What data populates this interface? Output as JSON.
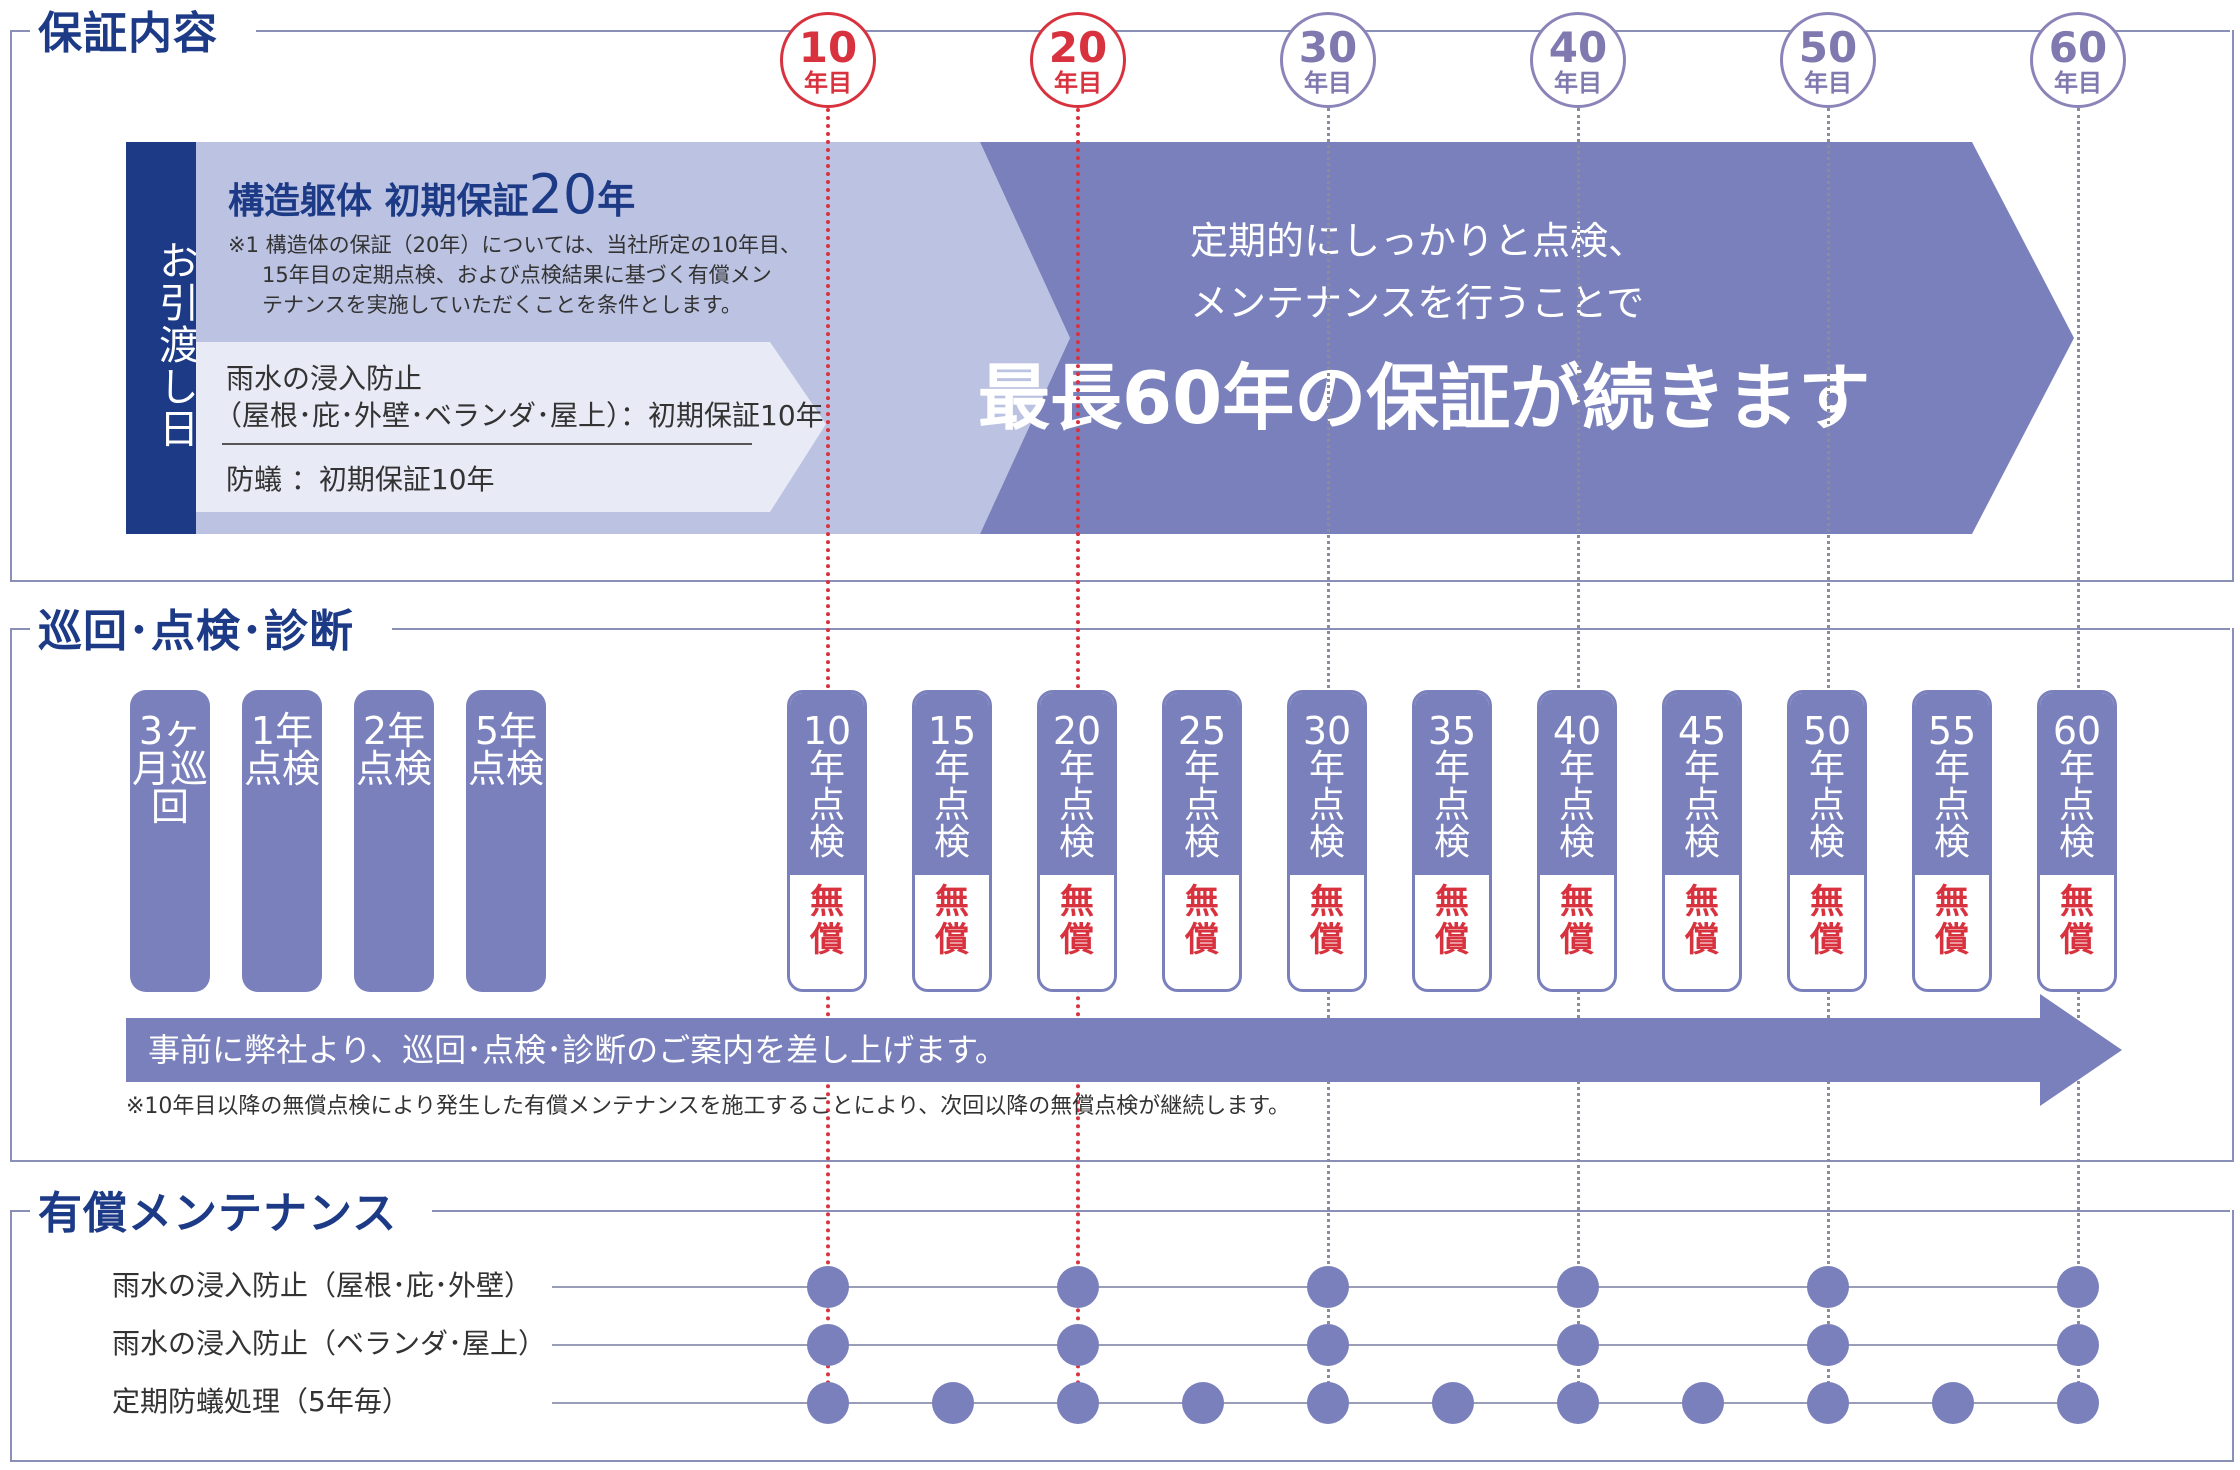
{
  "year_markers": [
    {
      "num": "10",
      "suffix": "年目",
      "style": "red"
    },
    {
      "num": "20",
      "suffix": "年目",
      "style": "red"
    },
    {
      "num": "30",
      "suffix": "年目",
      "style": "purple"
    },
    {
      "num": "40",
      "suffix": "年目",
      "style": "purple"
    },
    {
      "num": "50",
      "suffix": "年目",
      "style": "purple"
    },
    {
      "num": "60",
      "suffix": "年目",
      "style": "purple"
    }
  ],
  "section1": {
    "title": "保証内容",
    "handover": "お引渡し日",
    "structure_title_prefix": "構造躯体 初期保証",
    "structure_title_number": "20",
    "structure_title_unit": "年",
    "structure_note": [
      "※1 構造体の保証（20年）については、当社所定の10年目、",
      "15年目の定期点検、および点検結果に基づく有償メン",
      "テナンスを実施していただくことを条件とします。"
    ],
    "rain_line1": "雨水の浸入防止",
    "rain_line2": "（屋根･庇･外壁･ベランダ･屋上）：初期保証10年",
    "termite": "防蟻 ：初期保証10年",
    "big_arrow_line1": "定期的にしっかりと点検、",
    "big_arrow_line2": "メンテナンスを行うことで",
    "big_arrow_headline": "最長60年の保証が続きます"
  },
  "section2": {
    "title": "巡回･点検･診断",
    "early_inspections": [
      "3ヶ月巡回",
      "1年点検",
      "2年点検",
      "5年点検"
    ],
    "free_label": "無償",
    "inspections": [
      "10年点検",
      "15年点検",
      "20年点検",
      "25年点検",
      "30年点検",
      "35年点検",
      "40年点検",
      "45年点検",
      "50年点検",
      "55年点検",
      "60年点検"
    ],
    "arrow_text": "事前に弊社より、巡回･点検･診断のご案内を差し上げます。",
    "note": "※10年目以降の無償点検により発生した有償メンテナンスを施工することにより、次回以降の無償点検が継続します。"
  },
  "section3": {
    "title": "有償メンテナンス",
    "rows": [
      {
        "label": "雨水の浸入防止（屋根･庇･外壁）",
        "years": [
          10,
          20,
          30,
          40,
          50,
          60
        ]
      },
      {
        "label": "雨水の浸入防止（ベランダ･屋上）",
        "years": [
          10,
          20,
          30,
          40,
          50,
          60
        ]
      },
      {
        "label": "定期防蟻処理（5年毎）",
        "years": [
          10,
          15,
          20,
          25,
          30,
          35,
          40,
          45,
          50,
          55,
          60
        ]
      }
    ]
  },
  "colors": {
    "navy": "#1c3a86",
    "purple": "#7a80bb",
    "light_blue": "#bcc3e2",
    "red": "#d8323f"
  }
}
